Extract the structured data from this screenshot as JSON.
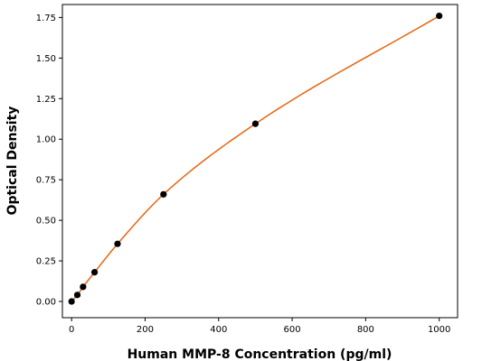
{
  "chart_data": {
    "type": "scatter",
    "title": "",
    "xlabel": "Human MMP-8 Concentration (pg/ml)",
    "ylabel": "Optical Density",
    "xlim": [
      -25,
      1050
    ],
    "ylim": [
      -0.1,
      1.83
    ],
    "x_ticks": [
      0,
      200,
      400,
      600,
      800,
      1000
    ],
    "y_ticks": [
      0.0,
      0.25,
      0.5,
      0.75,
      1.0,
      1.25,
      1.5,
      1.75
    ],
    "grid": false,
    "series": [
      {
        "x": [
          0,
          15.6,
          31.25,
          62.5,
          125,
          250,
          500,
          1000
        ],
        "y": [
          0.0,
          0.04,
          0.09,
          0.18,
          0.355,
          0.66,
          1.095,
          1.76
        ],
        "point_color": "#000000",
        "fit_curve": true,
        "fit_color": "#e8650f"
      }
    ]
  }
}
